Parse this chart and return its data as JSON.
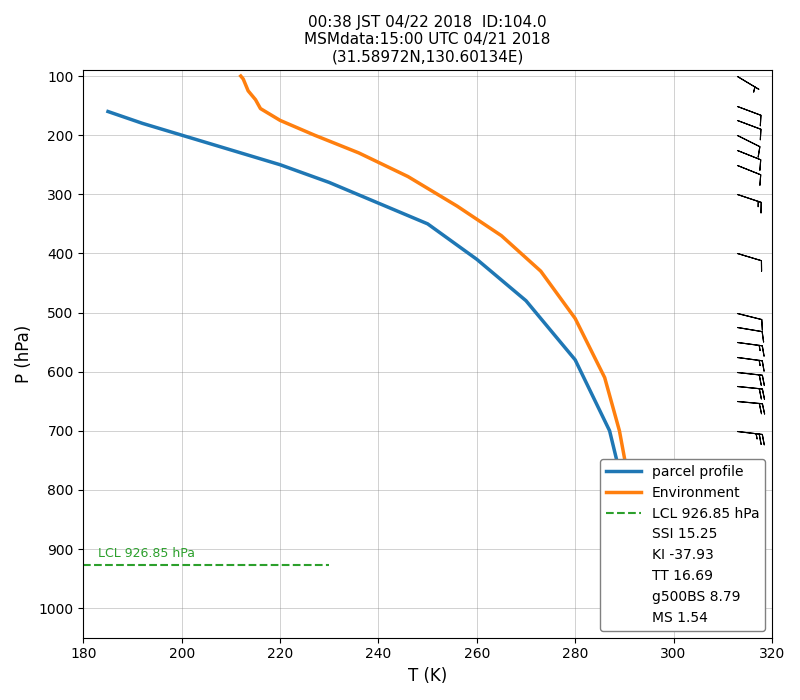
{
  "title_line1": "00:38 JST 04/22 2018  ID:104.0",
  "title_line2": "MSMdata:15:00 UTC 04/21 2018",
  "title_line3": "(31.58972N,130.60134E)",
  "xlabel": "T (K)",
  "ylabel": "P (hPa)",
  "xlim": [
    180,
    320
  ],
  "ylim": [
    1050,
    90
  ],
  "yticks": [
    100,
    200,
    300,
    400,
    500,
    600,
    700,
    800,
    900,
    1000
  ],
  "xticks": [
    180,
    200,
    220,
    240,
    260,
    280,
    300,
    320
  ],
  "lcl_pressure": 926.85,
  "lcl_label": "LCL 926.85 hPa",
  "legend_extra": [
    "SSI 15.25",
    "KI -37.93",
    "TT 16.69",
    "g500BS 8.79",
    "MS 1.54"
  ],
  "parcel_color": "#1f77b4",
  "env_color": "#ff7f0e",
  "lcl_color": "#2ca02c",
  "parcel_T": [
    185.0,
    192.0,
    200.0,
    210.0,
    220.0,
    230.0,
    240.0,
    250.0,
    260.0,
    270.0,
    280.0,
    287.0,
    290.5,
    292.0,
    293.0
  ],
  "parcel_P": [
    160.0,
    180.0,
    200.0,
    225.0,
    250.0,
    280.0,
    315.0,
    350.0,
    410.0,
    480.0,
    580.0,
    700.0,
    820.0,
    900.0,
    950.0
  ],
  "env_T": [
    212.0,
    212.5,
    213.0,
    213.5,
    215.0,
    216.0,
    220.0,
    227.0,
    236.0,
    246.0,
    256.0,
    265.0,
    273.0,
    280.0,
    286.0,
    289.0,
    291.0,
    292.0,
    292.5
  ],
  "env_P": [
    100.0,
    105.0,
    115.0,
    125.0,
    140.0,
    155.0,
    175.0,
    200.0,
    230.0,
    270.0,
    320.0,
    370.0,
    430.0,
    510.0,
    610.0,
    700.0,
    790.0,
    860.0,
    1000.0
  ],
  "wind_pressures": [
    100,
    150,
    175,
    200,
    225,
    250,
    300,
    400,
    500,
    525,
    550,
    575,
    600,
    625,
    650,
    700,
    750,
    800,
    825,
    850,
    875,
    900,
    925,
    950,
    975,
    1000
  ],
  "wind_u": [
    -5,
    -8,
    -8,
    -8,
    -10,
    -10,
    -12,
    -10,
    -8,
    -12,
    -15,
    -15,
    -18,
    -20,
    -22,
    -25,
    -25,
    -28,
    -30,
    -32,
    -35,
    -35,
    -38,
    -40,
    -42,
    -45
  ],
  "wind_v": [
    3,
    3,
    3,
    4,
    4,
    4,
    4,
    3,
    2,
    2,
    2,
    2,
    2,
    2,
    2,
    3,
    3,
    3,
    3,
    3,
    3,
    3,
    3,
    3,
    3,
    3
  ],
  "barb_x": 313.0,
  "title_fontsize": 11,
  "label_fontsize": 12,
  "legend_fontsize": 10,
  "linewidth": 2.5
}
